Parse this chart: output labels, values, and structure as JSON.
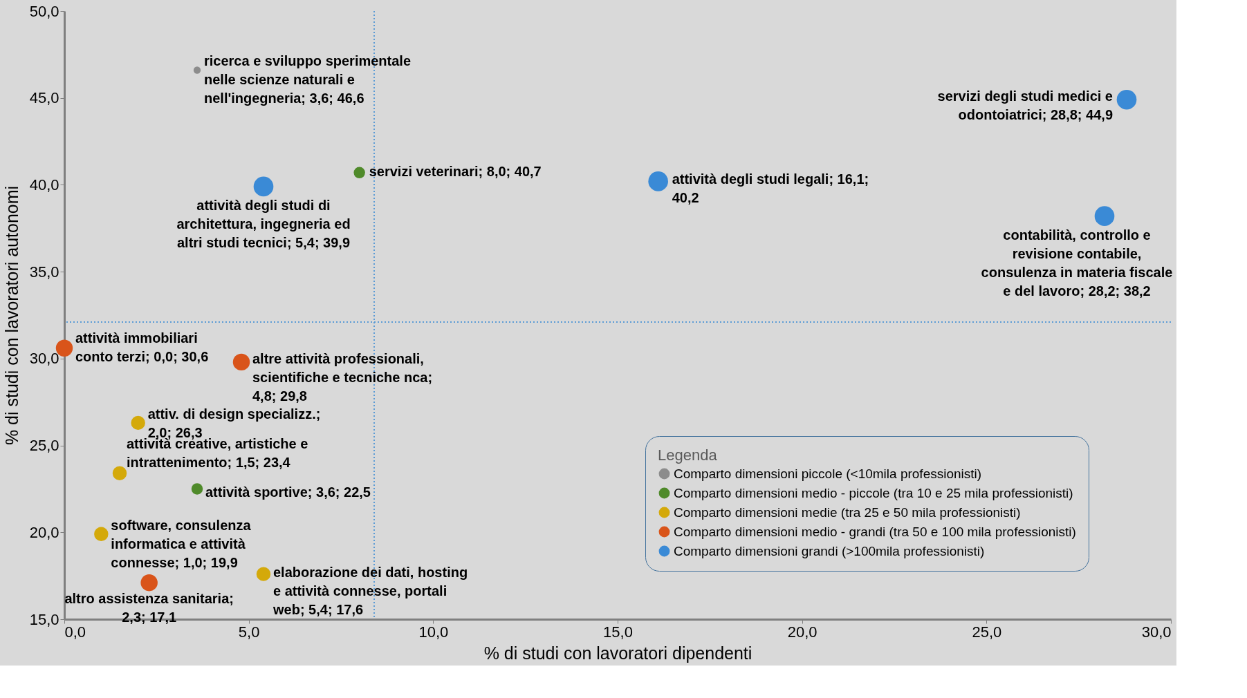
{
  "chart_data": {
    "type": "bubble",
    "xlabel": "% di studi con lavoratori dipendenti",
    "ylabel": "% di studi con lavoratori autonomi",
    "legend_title": "Legenda",
    "legend": "bottom right",
    "marker": "circle",
    "xlim": [
      0,
      30
    ],
    "ylim": [
      15,
      50
    ],
    "xticks": [
      {
        "value": 0,
        "label": "0,0"
      },
      {
        "value": 5,
        "label": "5,0"
      },
      {
        "value": 10,
        "label": "10,0"
      },
      {
        "value": 15,
        "label": "15,0"
      },
      {
        "value": 20,
        "label": "20,0"
      },
      {
        "value": 25,
        "label": "25,0"
      },
      {
        "value": 30,
        "label": "30,0"
      }
    ],
    "yticks": [
      {
        "value": 15,
        "label": "15,0"
      },
      {
        "value": 20,
        "label": "20,0"
      },
      {
        "value": 25,
        "label": "25,0"
      },
      {
        "value": 30,
        "label": "30,0"
      },
      {
        "value": 35,
        "label": "35,0"
      },
      {
        "value": 40,
        "label": "40,0"
      },
      {
        "value": 45,
        "label": "45,0"
      },
      {
        "value": 50,
        "label": "50,0"
      }
    ],
    "series": [
      {
        "name": "Comparto dimensioni piccole (<10mila professionisti)",
        "color": "#8c8c8c",
        "x": [
          3.6
        ],
        "values": [
          46.6
        ],
        "sizes": [
          0.13
        ],
        "value_labels": [
          "ricerca e sviluppo sperimentale nelle scienze naturali e nell'ingegneria; 3,6; 46,6"
        ]
      },
      {
        "name": "Comparto dimensioni medio - piccole (tra 10 e 25 mila professionisti)",
        "color": "#4f8a2a",
        "x": [
          8.0,
          3.6
        ],
        "values": [
          40.7,
          22.5
        ],
        "sizes": [
          0.33,
          0.33
        ],
        "value_labels": [
          "servizi veterinari; 8,0; 40,7",
          "attività sportive; 3,6; 22,5"
        ]
      },
      {
        "name": "Comparto dimensioni medie (tra 25 e 50 mila professionisti)",
        "color": "#d4a90a",
        "x": [
          2.0,
          1.5,
          1.0,
          5.4
        ],
        "values": [
          26.3,
          23.4,
          19.9,
          17.6
        ],
        "sizes": [
          0.51,
          0.51,
          0.51,
          0.51
        ],
        "value_labels": [
          "attiv. di design specializz.; 2,0; 26,3",
          "attività creative, artistiche e intrattenimento; 1,5; 23,4",
          "software, consulenza informatica e attività connesse; 1,0; 19,9",
          "elaborazione dei dati, hosting e attività connesse, portali web; 5,4; 17,6"
        ]
      },
      {
        "name": "Comparto dimensioni medio - grandi (tra 50 e 100 mila professionisti)",
        "color": "#d9541a",
        "x": [
          0.0,
          4.8,
          2.3
        ],
        "values": [
          30.6,
          29.8,
          17.1
        ],
        "sizes": [
          0.73,
          0.73,
          0.73
        ],
        "value_labels": [
          "attività immobiliari conto terzi; 0,0; 30,6",
          "altre attività professionali, scientifiche e tecniche nca; 4,8; 29,8",
          "altro assistenza sanitaria; 2,3; 17,1"
        ]
      },
      {
        "name": "Comparto dimensioni grandi (>100mila professionisti)",
        "color": "#3a8ad6",
        "x": [
          5.4,
          16.1,
          28.8,
          28.2
        ],
        "values": [
          39.9,
          40.2,
          44.9,
          38.2
        ],
        "sizes": [
          1,
          1,
          1,
          1
        ],
        "value_labels": [
          "attività degli studi di architettura, ingegneria ed altri studi tecnici; 5,4; 39,9",
          "attività degli studi legali; 16,1; 40,2",
          "servizi degli studi medici e odontoiatrici; 28,8; 44,9",
          "contabilità, controllo e revisione contabile, consulenza in materia fiscale e del lavoro; 28,2; 38,2"
        ]
      }
    ],
    "ref_lines": [
      {
        "axis": "x",
        "value": 8.4,
        "color": "#5b9bd5",
        "line_style": "dotted"
      },
      {
        "axis": "y",
        "value": 32.1,
        "color": "#5b9bd5",
        "line_style": "dotted"
      }
    ]
  }
}
